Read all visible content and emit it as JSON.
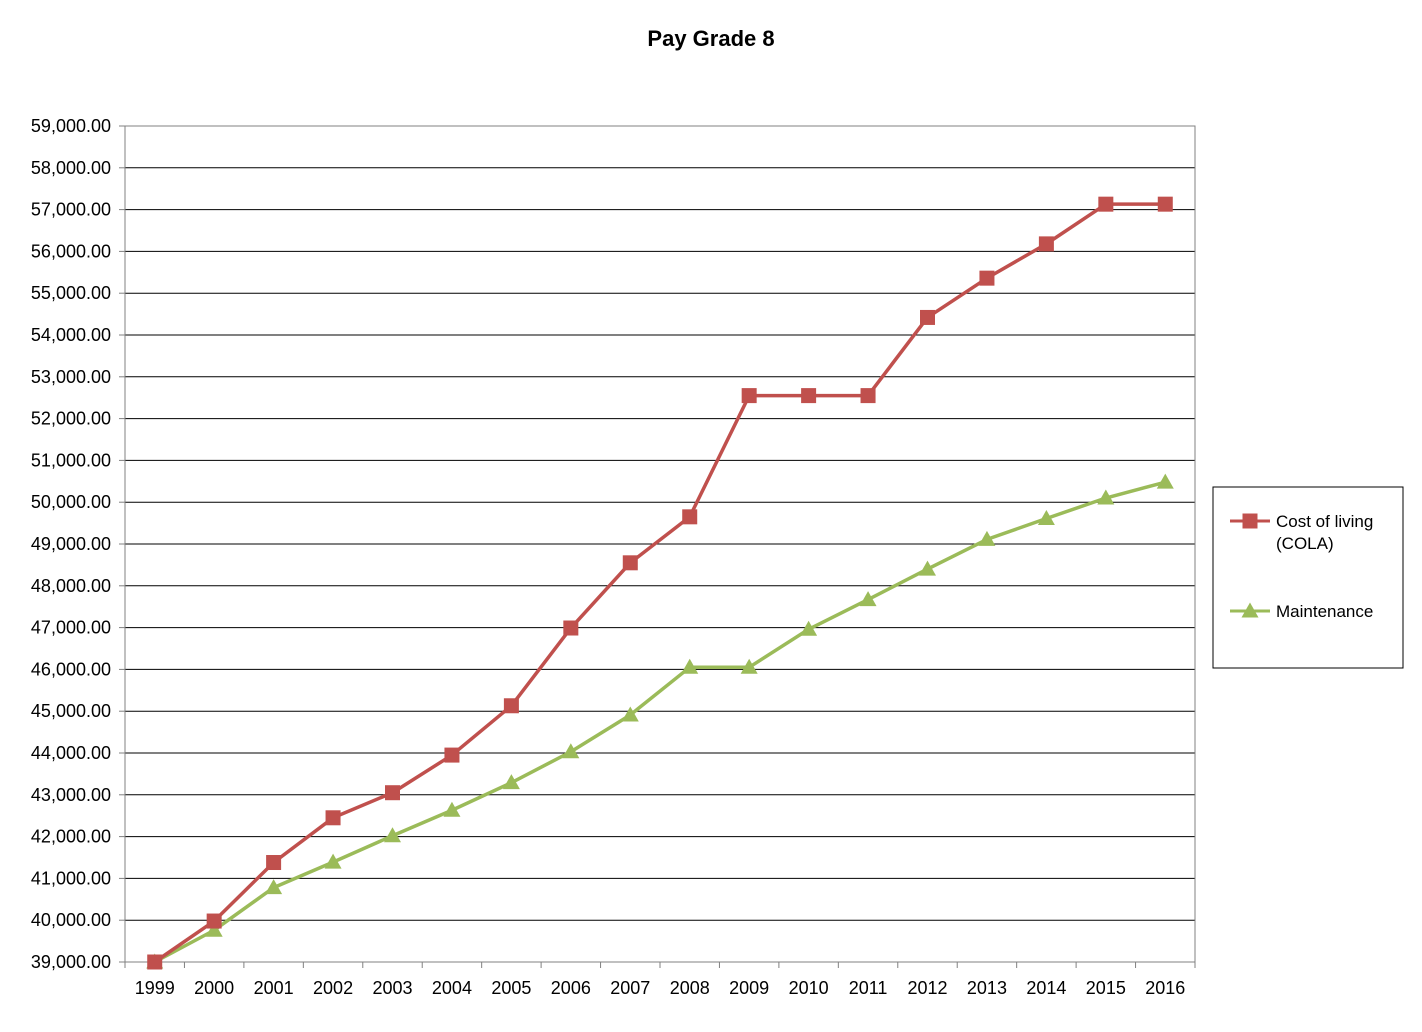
{
  "chart_data": {
    "type": "line",
    "title": "Pay Grade 8",
    "xlabel": "",
    "ylabel": "",
    "categories": [
      "1999",
      "2000",
      "2001",
      "2002",
      "2003",
      "2004",
      "2005",
      "2006",
      "2007",
      "2008",
      "2009",
      "2010",
      "2011",
      "2012",
      "2013",
      "2014",
      "2015",
      "2016"
    ],
    "ylim": [
      39000,
      59000
    ],
    "ytick_step": 1000,
    "ytick_labels": [
      "39,000.00",
      "40,000.00",
      "41,000.00",
      "42,000.00",
      "43,000.00",
      "44,000.00",
      "45,000.00",
      "46,000.00",
      "47,000.00",
      "48,000.00",
      "49,000.00",
      "50,000.00",
      "51,000.00",
      "52,000.00",
      "53,000.00",
      "54,000.00",
      "55,000.00",
      "56,000.00",
      "57,000.00",
      "58,000.00",
      "59,000.00"
    ],
    "grid": true,
    "legend_position": "right",
    "series": [
      {
        "name_lines": [
          "Cost of living",
          "(COLA)"
        ],
        "color": "#C0504D",
        "marker": "square",
        "values": [
          39000,
          39980,
          41380,
          42450,
          43050,
          43950,
          45130,
          46990,
          48550,
          49650,
          52550,
          52550,
          52550,
          54420,
          55360,
          56180,
          57130,
          57130
        ]
      },
      {
        "name_lines": [
          "Maintenance"
        ],
        "color": "#9BBB59",
        "marker": "triangle",
        "values": [
          39000,
          39760,
          40780,
          41390,
          42020,
          42630,
          43290,
          44030,
          44910,
          46050,
          46050,
          46960,
          47670,
          48400,
          49110,
          49610,
          50100,
          50480
        ]
      }
    ]
  }
}
